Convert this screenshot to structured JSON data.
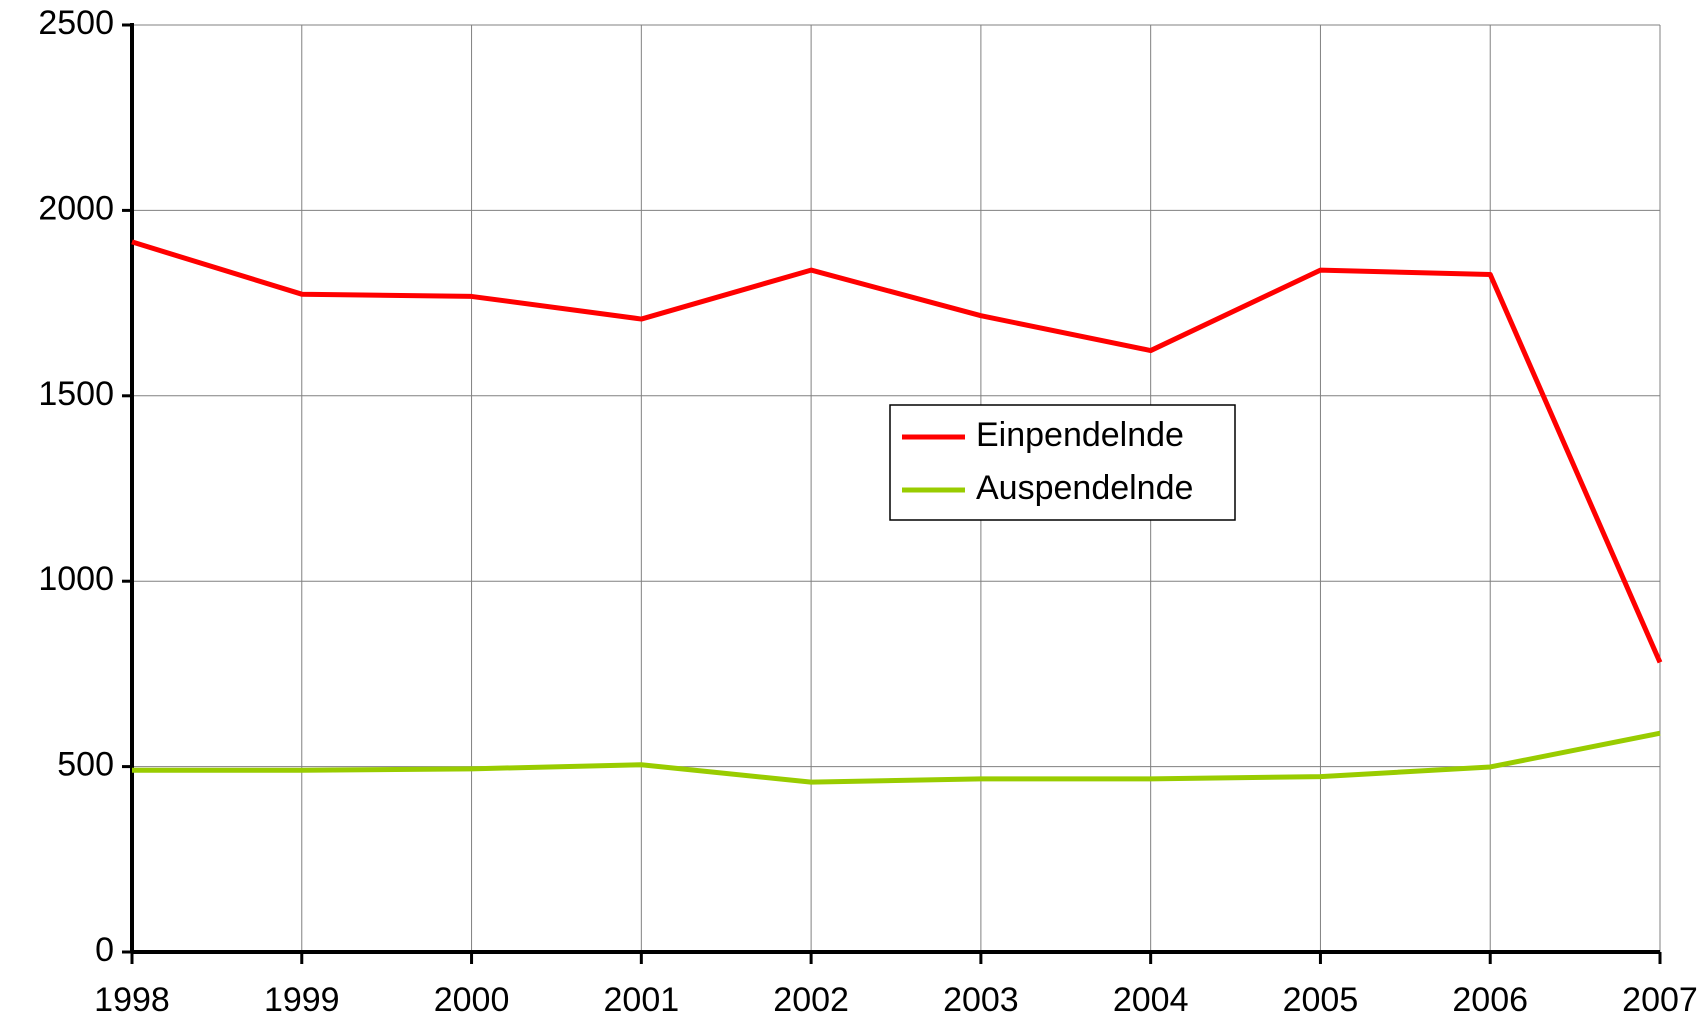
{
  "chart_data": {
    "type": "line",
    "x": [
      1998,
      1999,
      2000,
      2001,
      2002,
      2003,
      2004,
      2005,
      2006,
      2007
    ],
    "series": [
      {
        "name": "Einpendelnde",
        "color": "#ff0000",
        "values": [
          1915,
          1774,
          1768,
          1707,
          1839,
          1716,
          1622,
          1839,
          1827,
          781
        ]
      },
      {
        "name": "Auspendelnde",
        "color": "#99cc00",
        "values": [
          490,
          490,
          494,
          505,
          458,
          467,
          467,
          473,
          499,
          590
        ]
      }
    ],
    "xlim": [
      1998,
      2007
    ],
    "xticks": [
      1998,
      1999,
      2000,
      2001,
      2002,
      2003,
      2004,
      2005,
      2006,
      2007
    ],
    "ylim": [
      0,
      2500
    ],
    "yticks": [
      0,
      500,
      1000,
      1500,
      2000,
      2500
    ],
    "grid": true,
    "legend": "center"
  }
}
